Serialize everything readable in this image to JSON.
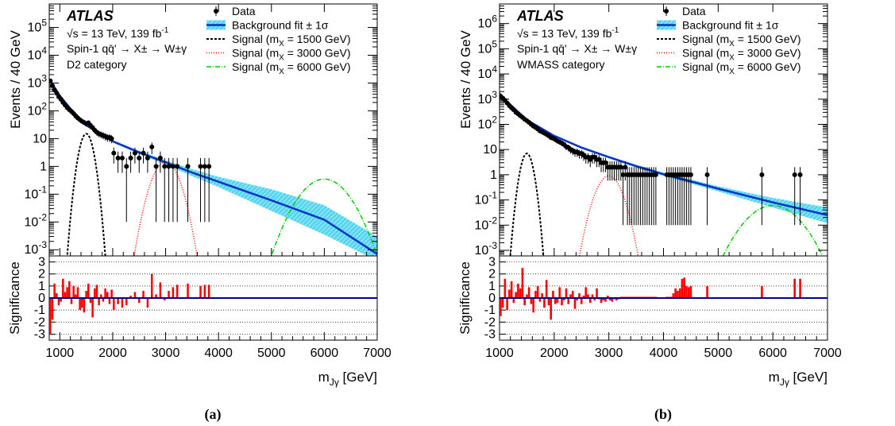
{
  "common": {
    "y_axis_label": "Events / 40 GeV",
    "ratio_axis_label": "Significance",
    "x_axis_label": "m",
    "x_axis_label_sub": "Jγ",
    "x_axis_label_unit": " [GeV]",
    "atlas_label": "ATLAS",
    "energy_line": "√s = 13 TeV, 139 fb",
    "energy_sup": "-1",
    "process_line": "Spin-1 qq̄' → X± → W±γ",
    "legend": [
      {
        "key": "data",
        "label": "Data",
        "color": "#000000"
      },
      {
        "key": "bkg",
        "label": "Background fit ± 1σ",
        "color": "#0033cc",
        "band_color": "#55d5f0"
      },
      {
        "key": "sig1500",
        "label": "Signal (m",
        "sub": "X",
        "rest": " = 1500 GeV)",
        "color": "#000000"
      },
      {
        "key": "sig3000",
        "label": "Signal (m",
        "sub": "X",
        "rest": " = 3000 GeV)",
        "color": "#ff0000"
      },
      {
        "key": "sig6000",
        "label": "Signal (m",
        "sub": "X",
        "rest": " = 6000 GeV)",
        "color": "#00cc00"
      }
    ],
    "x_ticks": [
      1000,
      2000,
      3000,
      4000,
      5000,
      6000,
      7000
    ],
    "sig_ticks": [
      -3,
      -2,
      -1,
      0,
      1,
      2,
      3
    ],
    "bar_color": "#ff0000"
  },
  "chart_data": [
    {
      "type": "scatter",
      "caption": "(a)",
      "category": "D2 category",
      "xlim": [
        800,
        7000
      ],
      "ylim_log": [
        0.0006,
        700000
      ],
      "y_ticks": [
        "10^-3",
        "10^-2",
        "10^-1",
        "1",
        "10",
        "10^2",
        "10^3",
        "10^4",
        "10^5"
      ],
      "sig_ylim": [
        -3.5,
        3.5
      ],
      "background_fit": {
        "x": [
          800,
          1000,
          1200,
          1500,
          2000,
          2500,
          3000,
          3500,
          4000,
          5000,
          6000,
          7000
        ],
        "y": [
          1400,
          350,
          120,
          30,
          8,
          3.2,
          1.4,
          0.6,
          0.28,
          0.06,
          0.012,
          0.0007
        ],
        "band_lo": [
          1300,
          320,
          110,
          28,
          7.2,
          2.8,
          1.15,
          0.45,
          0.18,
          0.025,
          0.0035,
          0.0004
        ],
        "band_hi": [
          1500,
          380,
          130,
          32,
          8.8,
          3.6,
          1.65,
          0.8,
          0.42,
          0.15,
          0.04,
          0.003
        ]
      },
      "data": {
        "x": [
          820,
          860,
          900,
          940,
          980,
          1020,
          1060,
          1100,
          1140,
          1180,
          1220,
          1260,
          1300,
          1340,
          1380,
          1420,
          1460,
          1500,
          1540,
          1580,
          1620,
          1660,
          1700,
          1740,
          1780,
          1820,
          1860,
          1900,
          1940,
          1980,
          2020,
          2100,
          2180,
          2260,
          2340,
          2420,
          2500,
          2580,
          2660,
          2740,
          2820,
          2900,
          2980,
          3060,
          3140,
          3220,
          3420,
          3660,
          3740,
          3820
        ],
        "y": [
          1200,
          800,
          560,
          430,
          320,
          260,
          200,
          160,
          130,
          110,
          95,
          80,
          65,
          55,
          48,
          42,
          38,
          34,
          37,
          30,
          25,
          20,
          17,
          15,
          14,
          13,
          12,
          11,
          11,
          10,
          3,
          2,
          2,
          1,
          2,
          3,
          2,
          3,
          2,
          5,
          1,
          2,
          1,
          1,
          1,
          1,
          1,
          1,
          1,
          1
        ]
      },
      "signals": [
        {
          "key": "sig1500",
          "mass": 1500,
          "peak": 15,
          "width": 80
        },
        {
          "key": "sig3000",
          "mass": 3000,
          "peak": 1.5,
          "width": 150
        },
        {
          "key": "sig6000",
          "mass": 6000,
          "peak": 0.35,
          "width": 280
        }
      ],
      "significance": {
        "x": [
          820,
          860,
          900,
          940,
          980,
          1020,
          1060,
          1100,
          1140,
          1180,
          1220,
          1260,
          1300,
          1340,
          1380,
          1420,
          1460,
          1500,
          1540,
          1580,
          1620,
          1660,
          1700,
          1740,
          1780,
          1820,
          1860,
          1900,
          1940,
          1980,
          2020,
          2100,
          2180,
          2260,
          2340,
          2420,
          2500,
          2580,
          2660,
          2740,
          2820,
          2900,
          2980,
          3060,
          3140,
          3220,
          3420,
          3660,
          3740,
          3820
        ],
        "y": [
          -3.0,
          -1.8,
          1.2,
          0.4,
          -0.6,
          -0.3,
          1.6,
          0.5,
          0.9,
          1.4,
          -0.5,
          1.0,
          0.3,
          0.9,
          -1.0,
          -0.8,
          -1.2,
          0.6,
          1.2,
          -0.4,
          -1.6,
          0.8,
          1.1,
          -0.6,
          0.3,
          -0.3,
          0.8,
          0.5,
          -0.5,
          0.7,
          -1.0,
          -0.5,
          -0.8,
          -0.6,
          0.2,
          0.5,
          -0.4,
          0.6,
          -0.8,
          2.0,
          0.3,
          1.3,
          -0.2,
          0.6,
          0.9,
          1.1,
          1.2,
          1.0,
          1.1,
          1.1
        ]
      }
    },
    {
      "type": "scatter",
      "caption": "(b)",
      "category": "WMASS category",
      "xlim": [
        1000,
        7000
      ],
      "ylim_log": [
        0.0006,
        6000000
      ],
      "y_ticks": [
        "10^-3",
        "10^-2",
        "10^-1",
        "1",
        "10",
        "10^2",
        "10^3",
        "10^4",
        "10^5",
        "10^6"
      ],
      "sig_ylim": [
        -3.5,
        3.5
      ],
      "background_fit": {
        "x": [
          1000,
          1200,
          1500,
          2000,
          2500,
          3000,
          3500,
          4000,
          5000,
          6000,
          7000
        ],
        "y": [
          1700,
          600,
          150,
          35,
          12,
          5,
          2.2,
          1.05,
          0.28,
          0.08,
          0.025
        ],
        "band_lo": [
          1600,
          560,
          140,
          32,
          11,
          4.5,
          1.9,
          0.9,
          0.22,
          0.05,
          0.012
        ],
        "band_hi": [
          1800,
          640,
          160,
          38,
          13,
          5.5,
          2.5,
          1.2,
          0.35,
          0.12,
          0.05
        ]
      },
      "data": {
        "x": [
          1020,
          1060,
          1100,
          1140,
          1180,
          1220,
          1260,
          1300,
          1340,
          1380,
          1420,
          1460,
          1500,
          1540,
          1580,
          1620,
          1660,
          1700,
          1740,
          1780,
          1820,
          1860,
          1900,
          1940,
          1980,
          2020,
          2060,
          2100,
          2140,
          2180,
          2220,
          2260,
          2300,
          2340,
          2380,
          2420,
          2460,
          2500,
          2540,
          2580,
          2620,
          2660,
          2700,
          2740,
          2780,
          2820,
          2860,
          2900,
          2940,
          2980,
          3020,
          3060,
          3100,
          3140,
          3180,
          3220,
          3260,
          3300,
          3340,
          3380,
          3420,
          3460,
          3500,
          3540,
          3580,
          3620,
          3660,
          3700,
          3740,
          3780,
          3820,
          3860,
          4060,
          4100,
          4140,
          4180,
          4220,
          4260,
          4300,
          4340,
          4380,
          4420,
          4460,
          4500,
          4800,
          5800,
          6400,
          6500
        ],
        "y": [
          1300,
          1100,
          900,
          700,
          550,
          450,
          380,
          300,
          260,
          220,
          190,
          160,
          140,
          120,
          100,
          85,
          75,
          65,
          55,
          50,
          45,
          40,
          35,
          30,
          28,
          25,
          22,
          20,
          18,
          16,
          13,
          12,
          10,
          9,
          8,
          8,
          7,
          7,
          6,
          5,
          5,
          4,
          5,
          5,
          4,
          4,
          3,
          3,
          3,
          2,
          2,
          2,
          2,
          2,
          2,
          2,
          1,
          2,
          1,
          1,
          1,
          1,
          1,
          1,
          1,
          1,
          1,
          1,
          1,
          1,
          1,
          1,
          1,
          1,
          1,
          1,
          1,
          1,
          1,
          1,
          1,
          1,
          1,
          1,
          1,
          1,
          1,
          1
        ]
      },
      "signals": [
        {
          "key": "sig1500",
          "mass": 1500,
          "peak": 7,
          "width": 70
        },
        {
          "key": "sig3000",
          "mass": 3000,
          "peak": 0.9,
          "width": 140
        },
        {
          "key": "sig6000",
          "mass": 6000,
          "peak": 0.06,
          "width": 300
        }
      ],
      "significance": {
        "x": [
          1020,
          1060,
          1100,
          1140,
          1180,
          1220,
          1260,
          1300,
          1340,
          1380,
          1420,
          1460,
          1500,
          1540,
          1580,
          1620,
          1660,
          1700,
          1740,
          1780,
          1820,
          1860,
          1900,
          1940,
          1980,
          2020,
          2060,
          2100,
          2140,
          2180,
          2220,
          2260,
          2300,
          2340,
          2380,
          2420,
          2460,
          2500,
          2540,
          2580,
          2620,
          2660,
          2700,
          2740,
          2780,
          2820,
          2860,
          2900,
          2940,
          2980,
          3020,
          3060,
          3100,
          3140,
          3180,
          3220,
          3260,
          3300,
          3340,
          3380,
          3420,
          3460,
          3500,
          3540,
          3580,
          3620,
          3660,
          3700,
          3740,
          3780,
          3820,
          3860,
          4060,
          4100,
          4140,
          4180,
          4220,
          4260,
          4300,
          4340,
          4380,
          4420,
          4460,
          4500,
          4800,
          5800,
          6400,
          6500
        ],
        "y": [
          -1.5,
          -0.8,
          1.6,
          -1.0,
          0.7,
          1.4,
          -0.4,
          0.5,
          1.2,
          0.8,
          2.5,
          -0.6,
          0.3,
          0.9,
          -0.5,
          -1.2,
          0.6,
          1.0,
          -0.3,
          0.4,
          -0.8,
          1.5,
          -0.6,
          -1.8,
          0.6,
          -0.5,
          -0.4,
          0.9,
          -0.6,
          -0.2,
          0.8,
          -0.5,
          0.3,
          0.6,
          -0.9,
          -0.2,
          0.4,
          -0.5,
          0.2,
          0.9,
          0.3,
          -0.4,
          0.3,
          -0.2,
          0.8,
          -0.1,
          -0.4,
          -0.2,
          -0.3,
          0.2,
          -0.2,
          -0.3,
          -0.1,
          -0.2,
          -0.1,
          0.1,
          0.1,
          0.1,
          0.1,
          0.1,
          0.1,
          0.1,
          0.1,
          0.1,
          0.1,
          0.1,
          0.1,
          0.1,
          0.1,
          0.1,
          0.1,
          0.1,
          0.1,
          0.1,
          0.1,
          0.4,
          0.8,
          0.6,
          0.8,
          1.6,
          1.7,
          1.0,
          0.9,
          1.0,
          1.0,
          1.0,
          1.6,
          1.6
        ]
      }
    }
  ]
}
